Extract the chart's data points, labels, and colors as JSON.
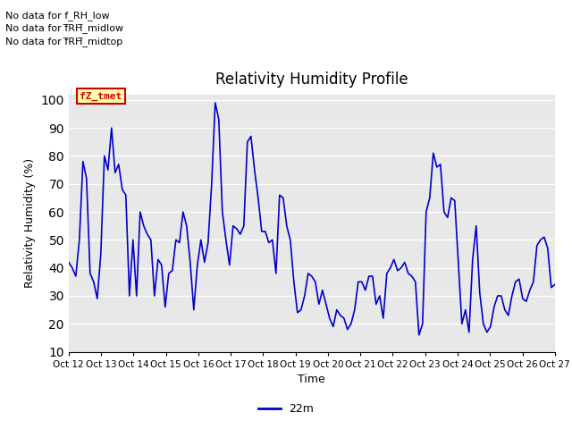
{
  "title": "Relativity Humidity Profile",
  "xlabel": "Time",
  "ylabel": "Relativity Humidity (%)",
  "ylim": [
    10,
    102
  ],
  "yticks": [
    10,
    20,
    30,
    40,
    50,
    60,
    70,
    80,
    90,
    100
  ],
  "line_color": "#0000CC",
  "line_width": 1.2,
  "bg_color": "#E8E8E8",
  "fig_bg": "#FFFFFF",
  "legend_label": "22m",
  "legend_color": "#0000CC",
  "no_data_texts": [
    "No data for f_RH_low",
    "No data for f̅RH̅_midlow",
    "No data for f̅RH̅_midtop"
  ],
  "tooltip_text": "fZ_tmet",
  "tooltip_bg": "#FFFFAA",
  "tooltip_border": "#CC0000",
  "x_tick_labels": [
    "Oct 12",
    "Oct 13",
    "Oct 14",
    "Oct 15",
    "Oct 16",
    "Oct 17",
    "Oct 18",
    "Oct 19",
    "Oct 20",
    "Oct 21",
    "Oct 22",
    "Oct 23",
    "Oct 24",
    "Oct 25",
    "Oct 26",
    "Oct 27"
  ],
  "n_days": 15,
  "y_values": [
    42,
    40,
    37,
    50,
    78,
    72,
    38,
    35,
    29,
    45,
    80,
    75,
    90,
    74,
    77,
    68,
    66,
    30,
    50,
    30,
    60,
    55,
    52,
    50,
    30,
    43,
    41,
    26,
    38,
    39,
    50,
    49,
    60,
    55,
    42,
    25,
    41,
    50,
    42,
    49,
    70,
    99,
    93,
    60,
    50,
    41,
    55,
    54,
    52,
    55,
    85,
    87,
    75,
    65,
    53,
    53,
    49,
    50,
    38,
    66,
    65,
    55,
    50,
    35,
    24,
    25,
    30,
    38,
    37,
    35,
    27,
    32,
    27,
    22,
    19,
    25,
    23,
    22,
    18,
    20,
    25,
    35,
    35,
    32,
    37,
    37,
    27,
    30,
    22,
    38,
    40,
    43,
    39,
    40,
    42,
    38,
    37,
    35,
    16,
    20,
    60,
    65,
    81,
    76,
    77,
    60,
    58,
    65,
    64,
    42,
    20,
    25,
    17,
    43,
    55,
    31,
    20,
    17,
    19,
    26,
    30,
    30,
    25,
    23,
    30,
    35,
    36,
    29,
    28,
    32,
    35,
    48,
    50,
    51,
    47,
    33,
    34
  ]
}
